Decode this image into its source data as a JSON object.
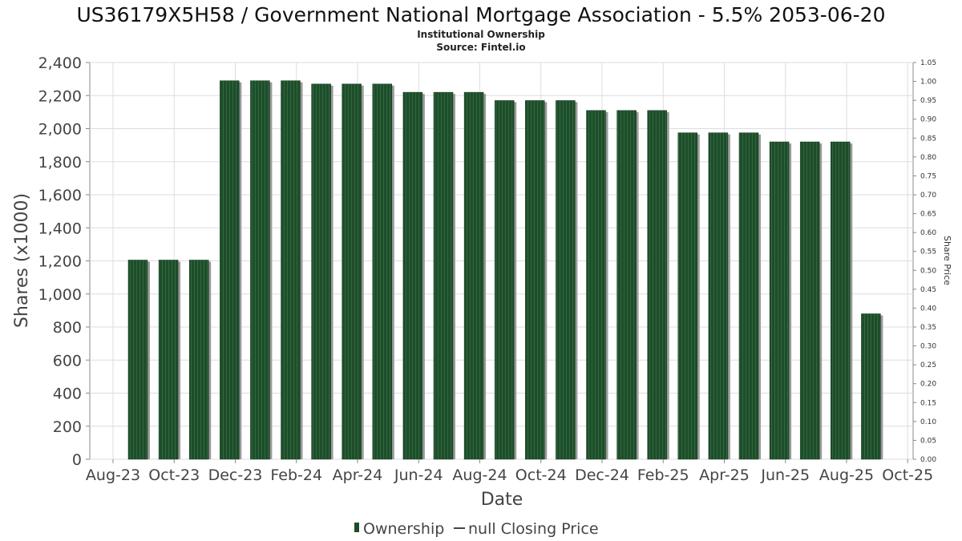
{
  "chart_data": {
    "type": "bar",
    "title": "US36179X5H58 / Government National Mortgage Association - 5.5% 2053-06-20",
    "subtitle_lines": [
      "Institutional Ownership",
      "Source: Fintel.io"
    ],
    "xlabel": "Date",
    "ylabel": "Shares (x1000)",
    "y2label": "Share Price",
    "ylim": [
      0,
      2400
    ],
    "y2lim": [
      0,
      1.05
    ],
    "y_ticks": [
      "0",
      "200",
      "400",
      "600",
      "800",
      "1,000",
      "1,200",
      "1,400",
      "1,600",
      "1,800",
      "2,000",
      "2,200",
      "2,400"
    ],
    "y2_ticks": [
      "0.00",
      "0.05",
      "0.10",
      "0.15",
      "0.20",
      "0.25",
      "0.30",
      "0.35",
      "0.40",
      "0.45",
      "0.50",
      "0.55",
      "0.60",
      "0.65",
      "0.70",
      "0.75",
      "0.80",
      "0.85",
      "0.90",
      "0.95",
      "1.00",
      "1.05"
    ],
    "x_ticks": [
      "Aug-23",
      "Oct-23",
      "Dec-23",
      "Feb-24",
      "Apr-24",
      "Jun-24",
      "Aug-24",
      "Oct-24",
      "Dec-24",
      "Feb-25",
      "Apr-25",
      "Jun-25",
      "Aug-25",
      "Oct-25"
    ],
    "grid": true,
    "legend_placement": "bottom-center",
    "series": [
      {
        "name": "Ownership",
        "color": "#1e4d2b",
        "values": [
          1205,
          1205,
          1205,
          2290,
          2290,
          2290,
          2270,
          2270,
          2270,
          2220,
          2220,
          2220,
          2170,
          2170,
          2170,
          2110,
          2110,
          2110,
          1975,
          1975,
          1975,
          1920,
          1920,
          1920,
          880
        ]
      },
      {
        "name": "null Closing Price",
        "color": "#444444",
        "values": []
      }
    ]
  }
}
